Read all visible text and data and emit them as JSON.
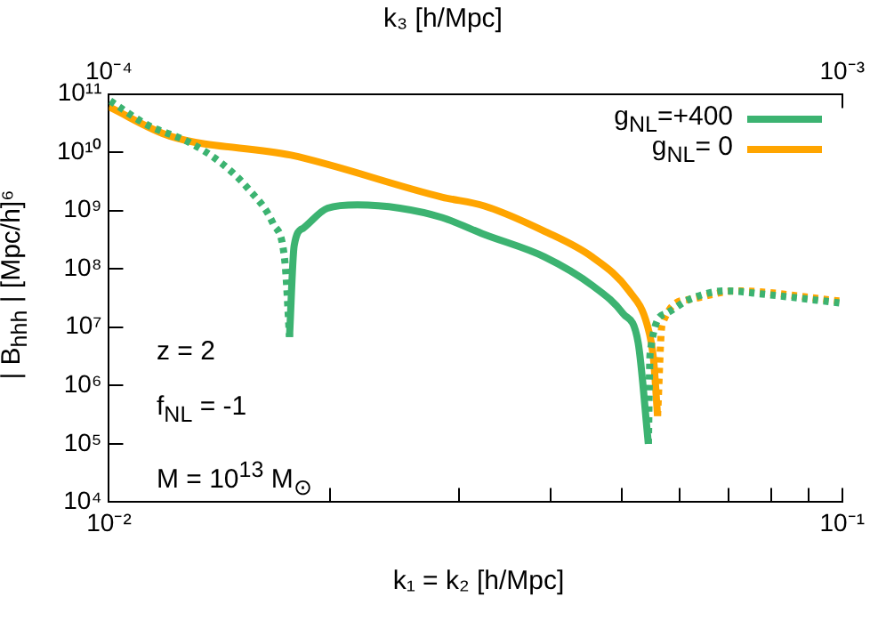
{
  "chart_data": {
    "type": "line",
    "xlabel": "k₁ = k₂  [h/Mpc]",
    "x2label": "k₃  [h/Mpc]",
    "ylabel": "| B$_{hhh}$ |  [Mpc/h]⁶",
    "log": "xy",
    "grid": false,
    "legend": "top right",
    "marker": "none",
    "xlim": [
      0.01,
      0.1
    ],
    "xticks": [
      {
        "value": 0.01,
        "label": "10⁻²"
      },
      {
        "value": 0.02,
        "label": null
      },
      {
        "value": 0.03,
        "label": null
      },
      {
        "value": 0.04,
        "label": null
      },
      {
        "value": 0.05,
        "label": null
      },
      {
        "value": 0.06,
        "label": null
      },
      {
        "value": 0.07,
        "label": null
      },
      {
        "value": 0.08,
        "label": null
      },
      {
        "value": 0.09,
        "label": null
      },
      {
        "value": 0.1,
        "label": "10⁻¹"
      }
    ],
    "x2lim": [
      0.0001,
      0.001
    ],
    "x2ticks": [
      {
        "value": 0.0001,
        "label": "10⁻⁴"
      },
      {
        "value": 0.001,
        "label": "10⁻³"
      }
    ],
    "ylim": [
      10000,
      100000000000
    ],
    "yticks": [
      {
        "value": 10000,
        "label": "10⁴"
      },
      {
        "value": 100000,
        "label": "10⁵"
      },
      {
        "value": 1000000,
        "label": "10⁶"
      },
      {
        "value": 10000000,
        "label": "10⁷"
      },
      {
        "value": 100000000,
        "label": "10⁸"
      },
      {
        "value": 1000000000,
        "label": "10⁹"
      },
      {
        "value": 10000000000,
        "label": "10¹⁰"
      },
      {
        "value": 100000000000,
        "label": "10¹¹"
      }
    ],
    "annotations": [
      "z = 2",
      "f$_{NL}$ = -1",
      "M = 10$^{13}$ M$_{⊙}$"
    ],
    "series": [
      {
        "color": "#3cb371",
        "line_style": "dotted",
        "x": [
          0.01004,
          0.01125,
          0.01284,
          0.01413,
          0.01552,
          0.01674,
          0.01738,
          0.01763
        ],
        "values": [
          76000000000.0,
          30000000000.0,
          15000000000.0,
          7000000000.0,
          2300000000.0,
          600000000.0,
          130000000.0,
          6800000.0
        ]
      },
      {
        "name": "g$_{NL}$=+400",
        "color": "#3cb371",
        "line_style": "solid",
        "x": [
          0.01763,
          0.01789,
          0.01841,
          0.01987,
          0.02183,
          0.02493,
          0.02846,
          0.0325,
          0.03929,
          0.04571,
          0.05027,
          0.05268,
          0.05441
        ],
        "values": [
          6800000.0,
          250000000.0,
          500000000.0,
          1100000000.0,
          1250000000.0,
          1100000000.0,
          760000000.0,
          390000000.0,
          160000000.0,
          51000000.0,
          17000000.0,
          5500000.0,
          100000.0
        ]
      },
      {
        "color": "#3cb371",
        "line_style": "dotted",
        "x": [
          0.05441,
          0.0547,
          0.0574,
          0.0619,
          0.0694,
          0.0778,
          0.0995
        ],
        "values": [
          100000.0,
          3500000.0,
          17000000.0,
          30000000.0,
          42000000.0,
          37000000.0,
          26000000.0
        ]
      },
      {
        "name": "g$_{NL}$= 0",
        "color": "#ffa500",
        "line_style": "solid",
        "x": [
          0.01,
          0.0121,
          0.01772,
          0.02846,
          0.0325,
          0.0393,
          0.0456,
          0.0512,
          0.0542,
          0.0553,
          0.056
        ],
        "values": [
          60000000000.0,
          19000000000.0,
          8900000000.0,
          1700000000.0,
          1200000000.0,
          440000000.0,
          160000000.0,
          42000000.0,
          11000000.0,
          2800000.0,
          300000.0
        ]
      },
      {
        "color": "#ffa500",
        "line_style": "dotted",
        "x": [
          0.056,
          0.0568,
          0.0619,
          0.0718,
          0.0995
        ],
        "values": [
          300000.0,
          11000000.0,
          30000000.0,
          42000000.0,
          28000000.0
        ]
      }
    ]
  }
}
